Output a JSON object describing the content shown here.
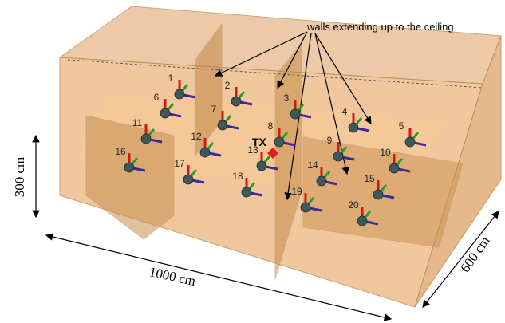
{
  "annotation": "walls extending up to the ceiling",
  "dimensions": {
    "height": "300 cm",
    "length": "1000 cm",
    "width": "600 cm"
  },
  "transmitter": "TX",
  "nodes": [
    "1",
    "2",
    "3",
    "4",
    "5",
    "6",
    "7",
    "8",
    "9",
    "10",
    "11",
    "12",
    "13",
    "14",
    "15",
    "16",
    "17",
    "18",
    "19",
    "20"
  ]
}
